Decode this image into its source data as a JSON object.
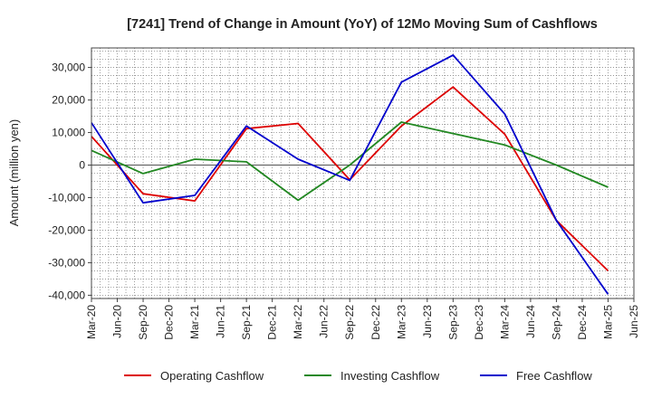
{
  "chart_data": {
    "type": "line",
    "title": "[7241]  Trend of Change in Amount (YoY) of 12Mo Moving Sum of Cashflows",
    "xlabel": "",
    "ylabel": "Amount (million yen)",
    "ylim": [
      -41000,
      36000
    ],
    "yticks": [
      30000,
      20000,
      10000,
      0,
      -10000,
      -20000,
      -30000,
      -40000
    ],
    "ytick_labels": [
      "30,000",
      "20,000",
      "10,000",
      "0",
      "-10,000",
      "-20,000",
      "-30,000",
      "-40,000"
    ],
    "categories": [
      "Mar-20",
      "Jun-20",
      "Sep-20",
      "Dec-20",
      "Mar-21",
      "Jun-21",
      "Sep-21",
      "Dec-21",
      "Mar-22",
      "Jun-22",
      "Sep-22",
      "Dec-22",
      "Mar-23",
      "Jun-23",
      "Sep-23",
      "Dec-23",
      "Mar-24",
      "Jun-24",
      "Sep-24",
      "Dec-24",
      "Mar-25",
      "Jun-25"
    ],
    "grid": true,
    "legend_position": "bottom",
    "series": [
      {
        "name": "Operating Cashflow",
        "color": "#dd0000",
        "values": [
          8800,
          null,
          -8800,
          null,
          -11000,
          null,
          11200,
          null,
          12800,
          null,
          -4500,
          null,
          12000,
          null,
          24000,
          null,
          9500,
          null,
          -17000,
          null,
          -32500,
          null
        ]
      },
      {
        "name": "Investing Cashflow",
        "color": "#228822",
        "values": [
          4500,
          null,
          -2600,
          null,
          1800,
          null,
          1000,
          null,
          -10800,
          null,
          0,
          null,
          13200,
          null,
          9700,
          null,
          6200,
          null,
          0,
          null,
          -6800,
          null
        ]
      },
      {
        "name": "Free Cashflow",
        "color": "#0000cc",
        "values": [
          13000,
          null,
          -11600,
          null,
          -9300,
          null,
          12000,
          null,
          1800,
          null,
          -4700,
          null,
          25500,
          null,
          33800,
          null,
          15700,
          null,
          -17000,
          null,
          -39700,
          null
        ]
      }
    ]
  }
}
